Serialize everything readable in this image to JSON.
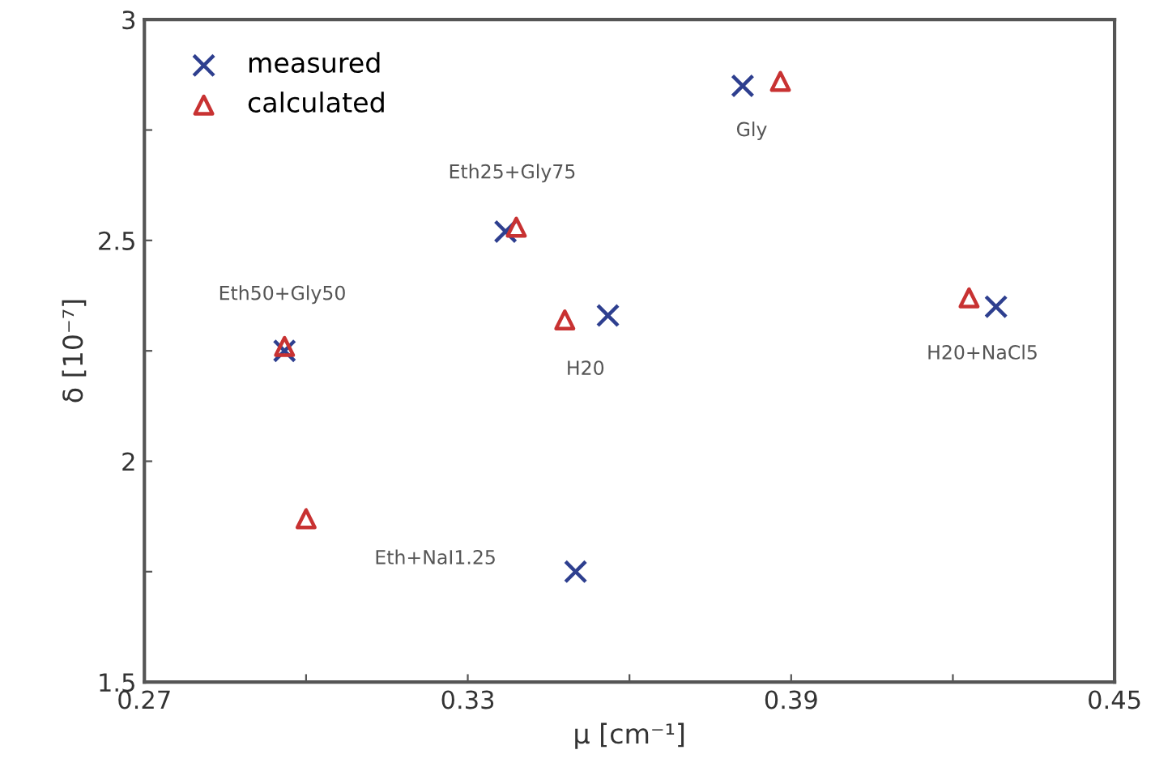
{
  "chart_data": {
    "type": "scatter",
    "xlabel": "μ [cm⁻¹]",
    "ylabel": "δ [10⁻⁷]",
    "xlim": [
      0.27,
      0.45
    ],
    "ylim": [
      1.5,
      3
    ],
    "xticks": [
      0.27,
      {
        "value": 0.3,
        "label": null
      },
      0.33,
      {
        "value": 0.36,
        "label": null
      },
      0.39,
      {
        "value": 0.42,
        "label": null
      },
      0.45
    ],
    "yticks": [
      1.5,
      {
        "value": 1.75,
        "label": null
      },
      2,
      {
        "value": 2.25,
        "label": null
      },
      2.5,
      {
        "value": 2.75,
        "label": null
      },
      3
    ],
    "grid": false,
    "legend": "top left",
    "series": [
      {
        "name": "measured",
        "color": "#2e3f8f",
        "marker": "cross",
        "x": [
          0.381,
          0.337,
          0.296,
          0.356,
          0.35,
          0.428
        ],
        "values": [
          2.85,
          2.52,
          2.25,
          2.33,
          1.75,
          2.35
        ]
      },
      {
        "name": "calculated",
        "color": "#c83232",
        "marker": "triangle",
        "x": [
          0.388,
          0.339,
          0.296,
          0.348,
          0.3,
          0.423
        ],
        "values": [
          2.86,
          2.53,
          2.26,
          2.32,
          1.87,
          2.37
        ]
      }
    ],
    "annotations": [
      {
        "text": "Gly",
        "x": 0.381,
        "y": 2.85
      },
      {
        "text": "Eth25+Gly75",
        "x": 0.337,
        "y": 2.52
      },
      {
        "text": "Eth50+Gly50",
        "x": 0.296,
        "y": 2.25
      },
      {
        "text": "H20",
        "x": 0.356,
        "y": 2.33
      },
      {
        "text": "H20+NaCl5",
        "x": 0.428,
        "y": 2.35
      },
      "Eth+NaI1.25"
    ]
  }
}
